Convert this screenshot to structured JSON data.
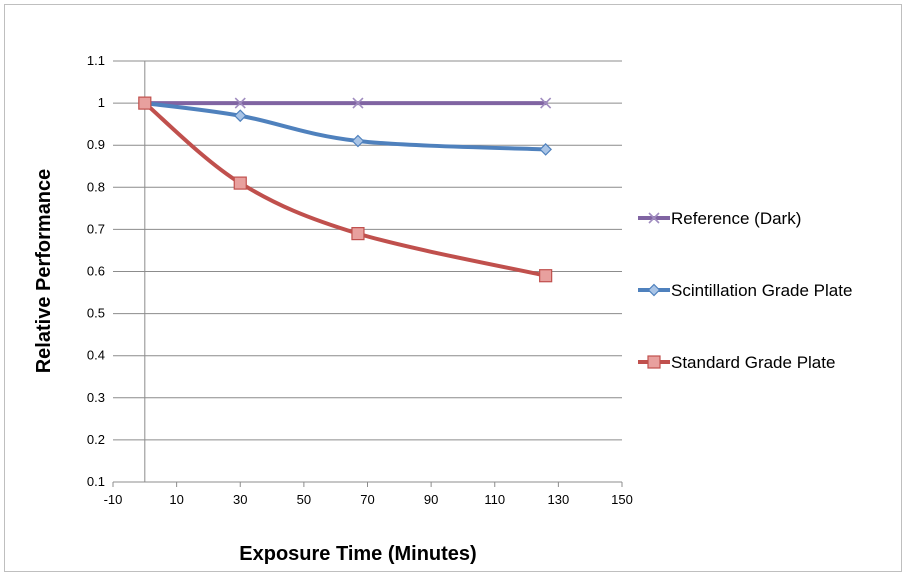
{
  "chart_data": {
    "type": "line",
    "title": "",
    "xlabel": "Exposure Time (Minutes)",
    "ylabel": "Relative Performance",
    "xlim": [
      -10,
      150
    ],
    "ylim": [
      0.1,
      1.1
    ],
    "x_ticks": [
      -10,
      10,
      30,
      50,
      70,
      90,
      110,
      130,
      150
    ],
    "y_ticks": [
      0.1,
      0.2,
      0.3,
      0.4,
      0.5,
      0.6,
      0.7,
      0.8,
      0.9,
      1,
      1.1
    ],
    "x_tick_labels": [
      "-10",
      "10",
      "30",
      "50",
      "70",
      "90",
      "110",
      "130",
      "150"
    ],
    "y_tick_labels": [
      "0.1",
      "0.2",
      "0.3",
      "0.4",
      "0.5",
      "0.6",
      "0.7",
      "0.8",
      "0.9",
      "1",
      "1.1"
    ],
    "grid": "horizontal",
    "smooth": true,
    "legend_position": "right",
    "series": [
      {
        "name": "Reference (Dark)",
        "color": "#8064a2",
        "marker": "x",
        "points": [
          [
            0,
            1.0
          ],
          [
            30,
            1.0
          ],
          [
            67,
            1.0
          ],
          [
            126,
            1.0
          ]
        ]
      },
      {
        "name": "Scintillation Grade Plate",
        "color": "#4f81bd",
        "marker": "diamond",
        "points": [
          [
            0,
            1.0
          ],
          [
            30,
            0.97
          ],
          [
            67,
            0.91
          ],
          [
            126,
            0.89
          ]
        ]
      },
      {
        "name": "Standard Grade Plate",
        "color": "#c0504d",
        "marker": "square",
        "points": [
          [
            0,
            1.0
          ],
          [
            30,
            0.81
          ],
          [
            67,
            0.69
          ],
          [
            126,
            0.59
          ]
        ]
      }
    ]
  }
}
